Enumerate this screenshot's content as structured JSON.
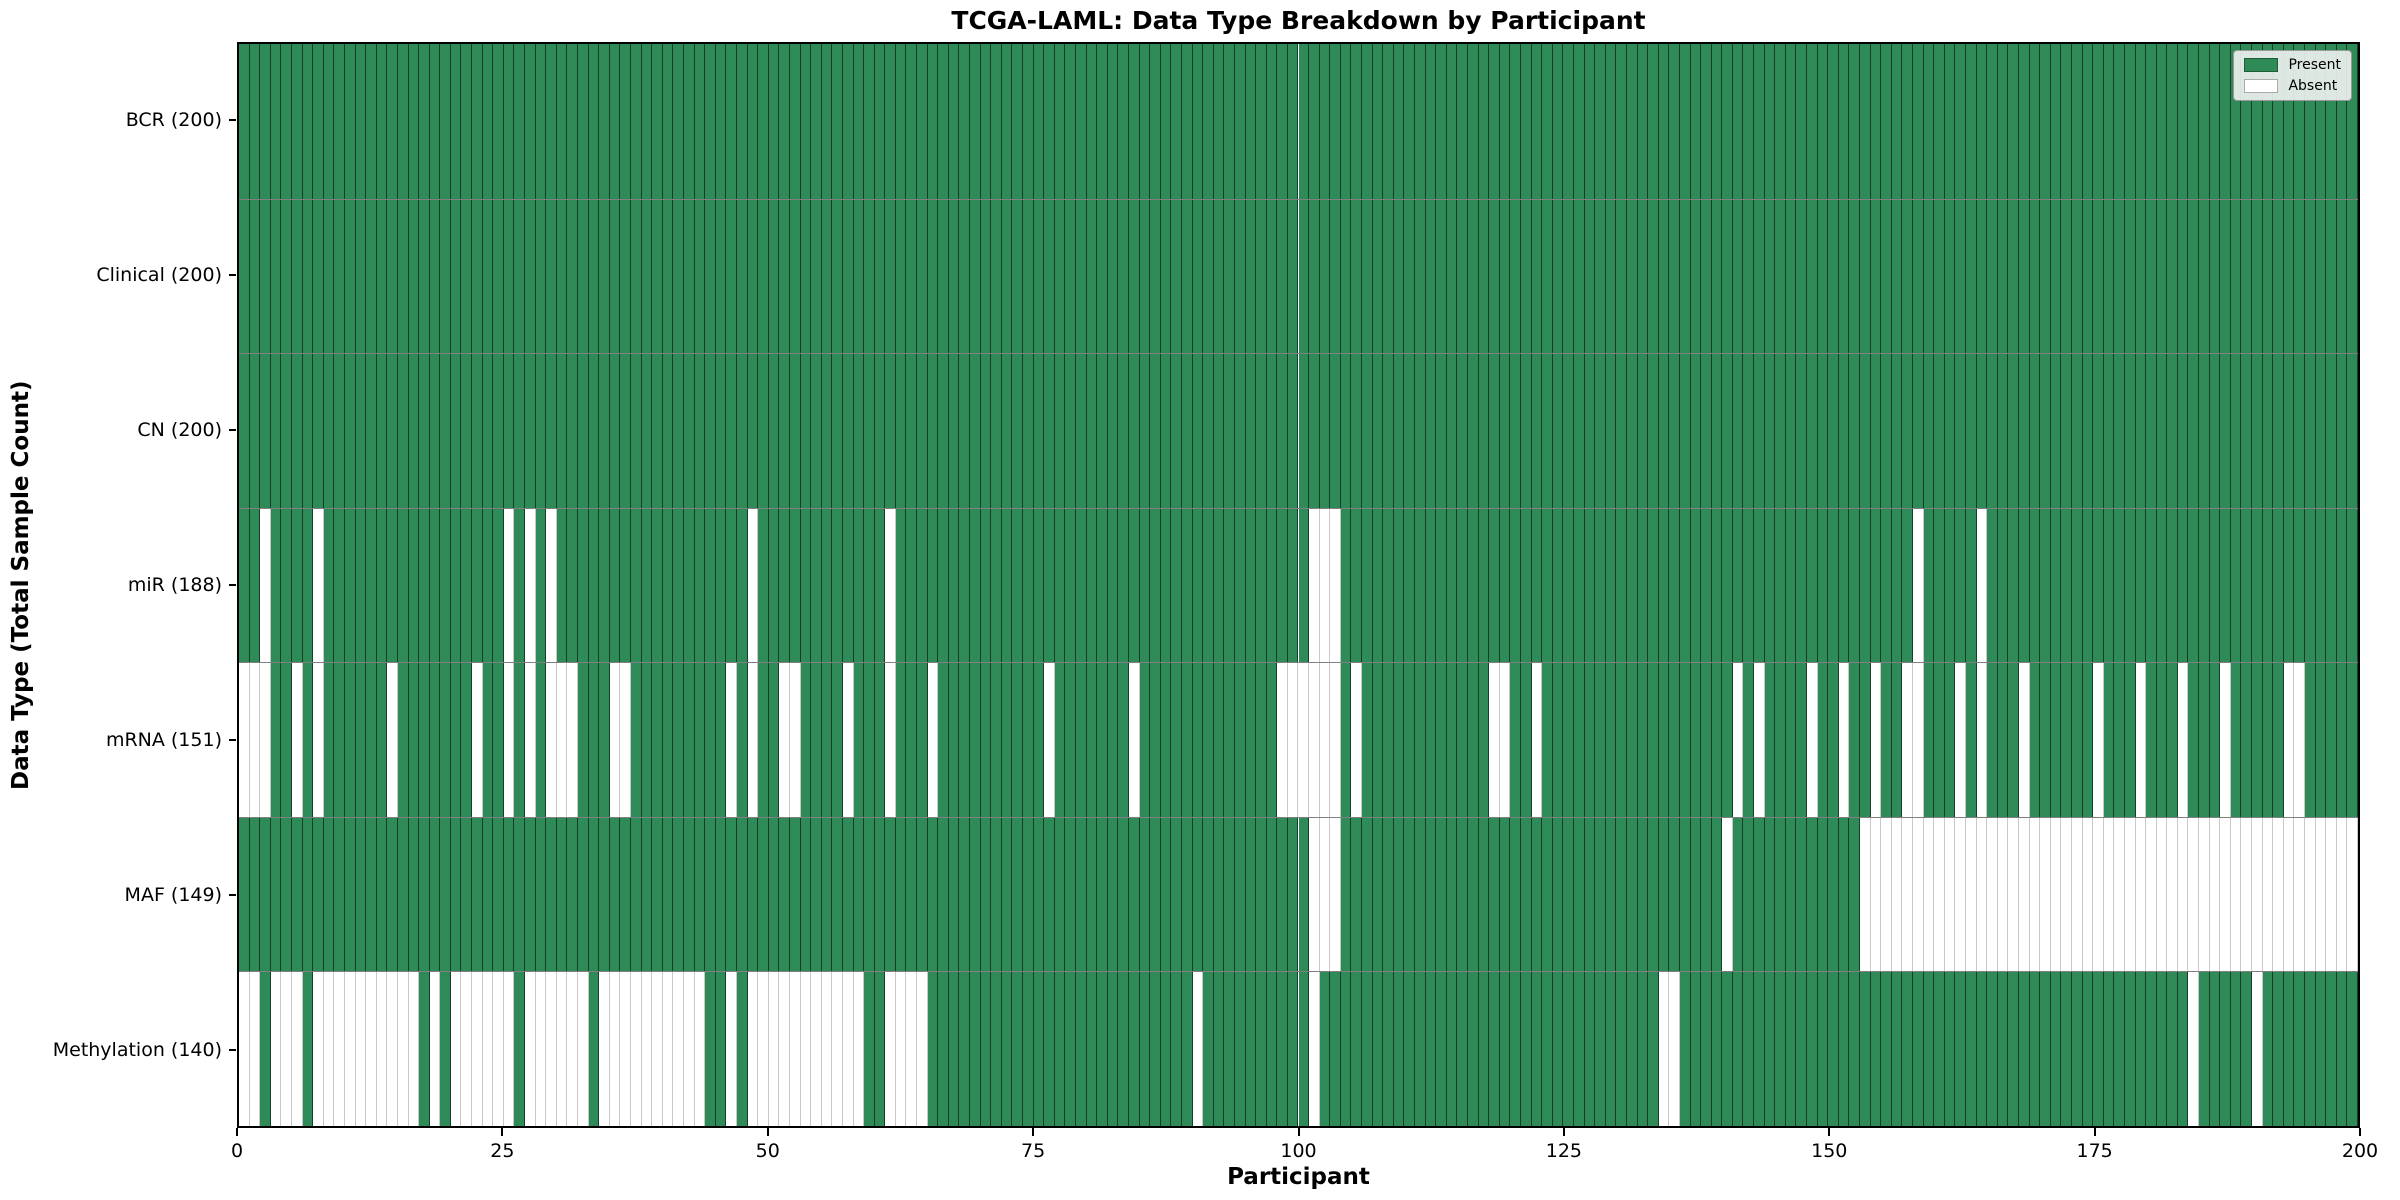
{
  "colors": {
    "present": "#2e8b57",
    "absent": "#ffffff",
    "cell_edge": "rgba(0,0,0,0.55)",
    "absent_edge": "#c9c9c9"
  },
  "chart_data": {
    "type": "heatmap",
    "title": "TCGA-LAML: Data Type Breakdown by Participant",
    "xlabel": "Participant",
    "ylabel": "Data Type (Total Sample Count)",
    "n_participants": 200,
    "x_ticks": [
      0,
      25,
      50,
      75,
      100,
      125,
      150,
      175,
      200
    ],
    "xlim": [
      0,
      200
    ],
    "grid": false,
    "legend_position": "upper right",
    "legend": [
      {
        "label": "Present",
        "color": "#2e8b57"
      },
      {
        "label": "Absent",
        "color": "#ffffff"
      }
    ],
    "rows": [
      {
        "label": "BCR (200)",
        "present_count": 200,
        "absent_participants": []
      },
      {
        "label": "Clinical (200)",
        "present_count": 200,
        "absent_participants": []
      },
      {
        "label": "CN (200)",
        "present_count": 200,
        "absent_participants": []
      },
      {
        "label": "miR (188)",
        "present_count": 188,
        "absent_participants": [
          2,
          7,
          25,
          27,
          29,
          48,
          61,
          101,
          102,
          103,
          158,
          164
        ]
      },
      {
        "label": "mRNA (151)",
        "present_count": 151,
        "absent_participants": [
          0,
          1,
          2,
          5,
          7,
          14,
          22,
          25,
          27,
          29,
          30,
          31,
          35,
          36,
          46,
          48,
          51,
          52,
          57,
          61,
          65,
          76,
          84,
          98,
          99,
          100,
          101,
          102,
          103,
          105,
          118,
          119,
          122,
          141,
          143,
          148,
          151,
          154,
          157,
          158,
          162,
          164,
          168,
          175,
          179,
          183,
          187,
          193,
          194
        ]
      },
      {
        "label": "MAF (149)",
        "present_count": 149,
        "absent_participants": [
          101,
          102,
          103,
          140,
          153,
          154,
          155,
          156,
          157,
          158,
          159,
          160,
          161,
          162,
          163,
          164,
          165,
          166,
          167,
          168,
          169,
          170,
          171,
          172,
          173,
          174,
          175,
          176,
          177,
          178,
          179,
          180,
          181,
          182,
          183,
          184,
          185,
          186,
          187,
          188,
          189,
          190,
          191,
          192,
          193,
          194,
          195,
          196,
          197,
          198,
          199
        ]
      },
      {
        "label": "Methylation (140)",
        "present_count": 140,
        "absent_participants": [
          0,
          1,
          3,
          4,
          5,
          7,
          8,
          9,
          10,
          11,
          12,
          13,
          14,
          15,
          16,
          18,
          20,
          21,
          22,
          23,
          24,
          25,
          27,
          28,
          29,
          30,
          31,
          32,
          34,
          35,
          36,
          37,
          38,
          39,
          40,
          41,
          42,
          43,
          46,
          48,
          49,
          50,
          51,
          52,
          53,
          54,
          55,
          56,
          57,
          58,
          61,
          62,
          63,
          64,
          90,
          101,
          134,
          135,
          184,
          190
        ]
      }
    ]
  }
}
